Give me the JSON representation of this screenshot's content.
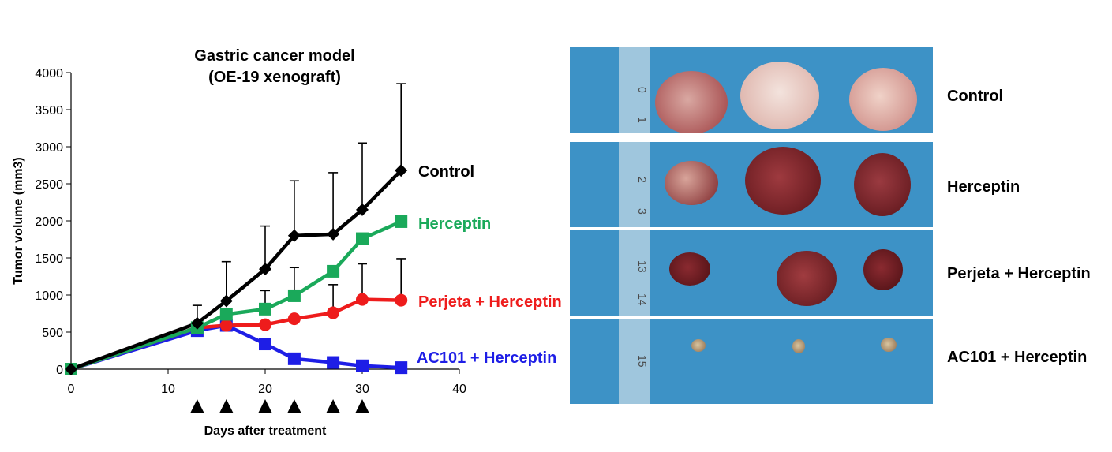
{
  "chart_data": {
    "type": "line",
    "title": "Gastric cancer model",
    "subtitle": "(OE-19 xenograft)",
    "xlabel": "Days after treatment",
    "ylabel": "Tumor volume (mm3)",
    "xlim": [
      0,
      40
    ],
    "ylim": [
      0,
      4000
    ],
    "xticks": [
      "0",
      "10",
      "20",
      "30",
      "40"
    ],
    "yticks": [
      "0",
      "500",
      "1000",
      "1500",
      "2000",
      "2500",
      "3000",
      "3500",
      "4000"
    ],
    "grid": false,
    "legend": "inline labels at line ends",
    "dosing_days": [
      13,
      16,
      20,
      23,
      27,
      30
    ],
    "series": [
      {
        "name": "Control",
        "color": "#000000",
        "marker": "diamond",
        "points": [
          [
            0,
            0
          ],
          [
            13,
            620
          ],
          [
            16,
            920
          ],
          [
            20,
            1350
          ],
          [
            23,
            1800
          ],
          [
            27,
            1820
          ],
          [
            30,
            2150
          ],
          [
            34,
            2680
          ]
        ],
        "error_upper": [
          0,
          240,
          530,
          580,
          740,
          830,
          900,
          1170
        ]
      },
      {
        "name": "Herceptin",
        "color": "#1aa95a",
        "marker": "square",
        "points": [
          [
            0,
            0
          ],
          [
            13,
            560
          ],
          [
            16,
            740
          ],
          [
            20,
            810
          ],
          [
            23,
            990
          ],
          [
            27,
            1320
          ],
          [
            30,
            1760
          ],
          [
            34,
            1990
          ]
        ],
        "error_upper": [
          0,
          0,
          0,
          250,
          380,
          0,
          0,
          0
        ]
      },
      {
        "name": "Perjeta + Herceptin",
        "color": "#ee1c1c",
        "marker": "circle",
        "points": [
          [
            0,
            0
          ],
          [
            13,
            560
          ],
          [
            16,
            590
          ],
          [
            20,
            600
          ],
          [
            23,
            680
          ],
          [
            27,
            760
          ],
          [
            30,
            940
          ],
          [
            34,
            930
          ]
        ],
        "error_upper": [
          0,
          0,
          0,
          0,
          0,
          380,
          480,
          560
        ]
      },
      {
        "name": "AC101  + Herceptin",
        "color": "#1e1ee6",
        "marker": "square",
        "points": [
          [
            0,
            0
          ],
          [
            13,
            520
          ],
          [
            16,
            590
          ],
          [
            20,
            340
          ],
          [
            23,
            140
          ],
          [
            27,
            90
          ],
          [
            30,
            45
          ],
          [
            34,
            20
          ]
        ],
        "error_upper": [
          0,
          0,
          0,
          0,
          0,
          0,
          0,
          0
        ]
      }
    ]
  },
  "photo_panel": {
    "colors": {
      "background": "#3d92c6",
      "tumor": "#8a2a2e",
      "control_tumor": "#e8c2bc"
    },
    "rows": [
      {
        "label": "Control",
        "ruler": [
          "0",
          "1"
        ]
      },
      {
        "label": "Herceptin",
        "ruler": [
          "2",
          "3"
        ]
      },
      {
        "label": "Perjeta + Herceptin",
        "ruler": [
          "13",
          "14"
        ]
      },
      {
        "label": "AC101  + Herceptin",
        "ruler": [
          "15"
        ]
      }
    ]
  }
}
